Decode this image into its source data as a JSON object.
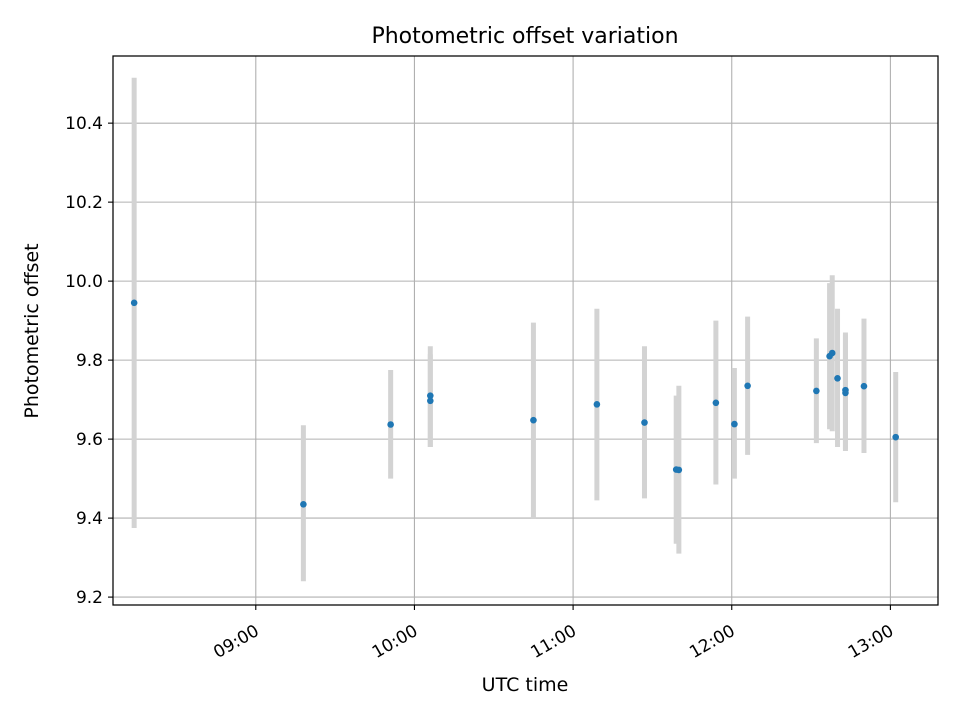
{
  "chart_data": {
    "type": "scatter",
    "title": "Photometric offset variation",
    "xlabel": "UTC time",
    "ylabel": "Photometric offset",
    "x_axis": "time",
    "xlim": [
      "08:06",
      "13:18"
    ],
    "ylim": [
      9.18,
      10.57
    ],
    "xticks": [
      "09:00",
      "10:00",
      "11:00",
      "12:00",
      "13:00"
    ],
    "yticks": [
      9.2,
      9.4,
      9.6,
      9.8,
      10.0,
      10.2,
      10.4
    ],
    "grid": true,
    "legend": false,
    "colors": {
      "point": "#1f77b4",
      "error_bar": "#d3d3d3",
      "grid": "#b0b0b0"
    },
    "points": [
      {
        "x": "08:14",
        "y": 9.945,
        "ylow": 9.375,
        "yhigh": 10.515
      },
      {
        "x": "09:18",
        "y": 9.435,
        "ylow": 9.24,
        "yhigh": 9.635
      },
      {
        "x": "09:51",
        "y": 9.637,
        "ylow": 9.5,
        "yhigh": 9.775
      },
      {
        "x": "10:06",
        "y": 9.71,
        "ylow": 9.58,
        "yhigh": 9.835
      },
      {
        "x": "10:06",
        "y": 9.697,
        "ylow": 9.58,
        "yhigh": 9.815
      },
      {
        "x": "10:45",
        "y": 9.648,
        "ylow": 9.4,
        "yhigh": 9.895
      },
      {
        "x": "11:09",
        "y": 9.688,
        "ylow": 9.445,
        "yhigh": 9.93
      },
      {
        "x": "11:27",
        "y": 9.642,
        "ylow": 9.45,
        "yhigh": 9.835
      },
      {
        "x": "11:39",
        "y": 9.523,
        "ylow": 9.335,
        "yhigh": 9.71
      },
      {
        "x": "11:40",
        "y": 9.522,
        "ylow": 9.31,
        "yhigh": 9.735
      },
      {
        "x": "11:54",
        "y": 9.692,
        "ylow": 9.485,
        "yhigh": 9.9
      },
      {
        "x": "12:01",
        "y": 9.638,
        "ylow": 9.5,
        "yhigh": 9.78
      },
      {
        "x": "12:06",
        "y": 9.735,
        "ylow": 9.56,
        "yhigh": 9.91
      },
      {
        "x": "12:32",
        "y": 9.722,
        "ylow": 9.59,
        "yhigh": 9.855
      },
      {
        "x": "12:37",
        "y": 9.81,
        "ylow": 9.625,
        "yhigh": 9.995
      },
      {
        "x": "12:38",
        "y": 9.818,
        "ylow": 9.62,
        "yhigh": 10.015
      },
      {
        "x": "12:40",
        "y": 9.754,
        "ylow": 9.58,
        "yhigh": 9.93
      },
      {
        "x": "12:43",
        "y": 9.724,
        "ylow": 9.575,
        "yhigh": 9.87
      },
      {
        "x": "12:43",
        "y": 9.717,
        "ylow": 9.57,
        "yhigh": 9.865
      },
      {
        "x": "12:50",
        "y": 9.734,
        "ylow": 9.565,
        "yhigh": 9.905
      },
      {
        "x": "13:02",
        "y": 9.605,
        "ylow": 9.44,
        "yhigh": 9.77
      }
    ]
  }
}
